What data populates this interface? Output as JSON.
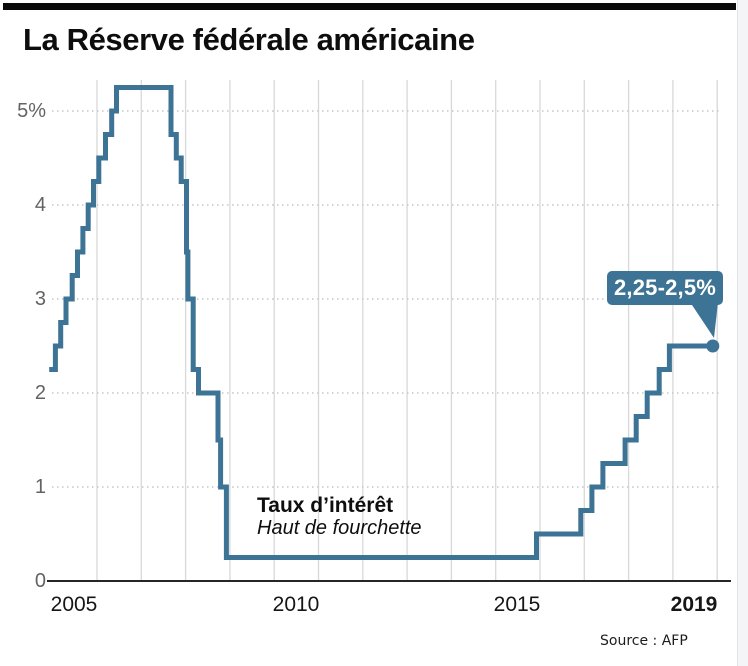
{
  "page": {
    "title": "La Réserve fédérale américaine",
    "source": "Source : AFP"
  },
  "chart_data": {
    "type": "line",
    "style": "step-after",
    "title": "La Réserve fédérale américaine",
    "series_label": "Taux d’intérêt",
    "series_sublabel": "Haut de fourchette",
    "unit": "%",
    "xlabel": "",
    "ylabel": "",
    "xlim": [
      2004.4,
      2019.9
    ],
    "ylim": [
      0,
      5.4
    ],
    "grid": {
      "vertical": "solid yearly lines",
      "horizontal": "dotted at each integer percent"
    },
    "legend_position": "none",
    "x_ticks": [
      {
        "label": "2005",
        "year": 2005,
        "bold": false
      },
      {
        "label": "2010",
        "year": 2010,
        "bold": false
      },
      {
        "label": "2015",
        "year": 2015,
        "bold": false
      },
      {
        "label": "2019",
        "year": 2019,
        "bold": true
      }
    ],
    "y_ticks": [
      {
        "label": "5%",
        "value": 5
      },
      {
        "label": "4",
        "value": 4
      },
      {
        "label": "3",
        "value": 3
      },
      {
        "label": "2",
        "value": 2
      },
      {
        "label": "1",
        "value": 1
      },
      {
        "label": "0",
        "value": 0
      }
    ],
    "points": [
      [
        2004.44,
        2.25
      ],
      [
        2004.58,
        2.5
      ],
      [
        2004.7,
        2.75
      ],
      [
        2004.82,
        3.0
      ],
      [
        2004.96,
        3.25
      ],
      [
        2005.08,
        3.5
      ],
      [
        2005.2,
        3.75
      ],
      [
        2005.32,
        4.0
      ],
      [
        2005.44,
        4.25
      ],
      [
        2005.56,
        4.5
      ],
      [
        2005.71,
        4.75
      ],
      [
        2005.85,
        5.0
      ],
      [
        2005.96,
        5.25
      ],
      [
        2007.19,
        4.75
      ],
      [
        2007.31,
        4.5
      ],
      [
        2007.42,
        4.25
      ],
      [
        2007.54,
        3.5
      ],
      [
        2007.57,
        3.0
      ],
      [
        2007.69,
        2.25
      ],
      [
        2007.81,
        2.0
      ],
      [
        2008.25,
        1.5
      ],
      [
        2008.31,
        1.0
      ],
      [
        2008.44,
        0.25
      ],
      [
        2015.44,
        0.5
      ],
      [
        2016.44,
        0.75
      ],
      [
        2016.69,
        1.0
      ],
      [
        2016.94,
        1.25
      ],
      [
        2017.44,
        1.5
      ],
      [
        2017.69,
        1.75
      ],
      [
        2017.94,
        2.0
      ],
      [
        2018.21,
        2.25
      ],
      [
        2018.44,
        2.5
      ],
      [
        2019.42,
        2.5
      ]
    ],
    "annotation": {
      "label": "2,25-2,5%",
      "x": 2019.42,
      "y": 2.5
    },
    "colors": {
      "accent": "#3d7394",
      "grid_v": "#d8d8d8",
      "grid_h": "#c6c6c6",
      "axis": "#262626"
    }
  }
}
